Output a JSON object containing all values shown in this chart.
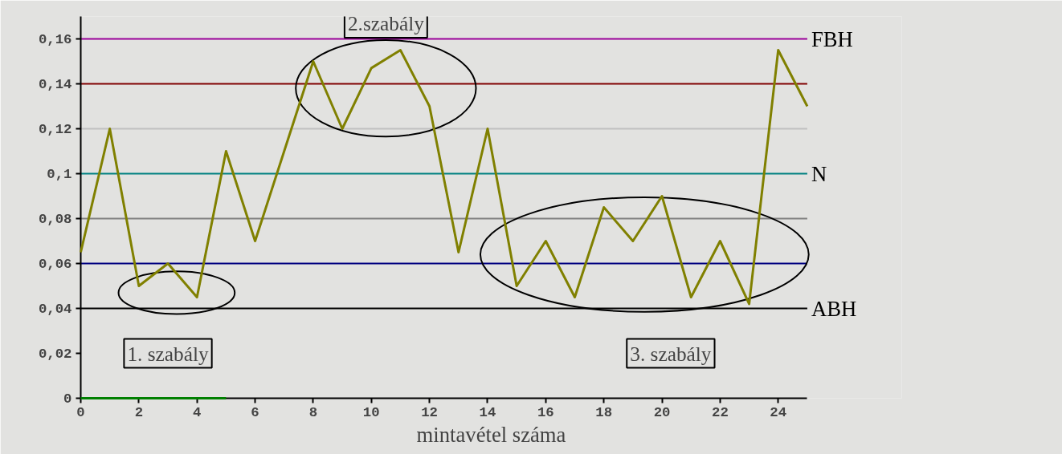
{
  "chart_data": {
    "type": "line",
    "xlabel": "mintavétel száma",
    "x": [
      0,
      1,
      2,
      3,
      4,
      5,
      6,
      7,
      8,
      9,
      10,
      11,
      12,
      13,
      14,
      15,
      16,
      17,
      18,
      19,
      20,
      21,
      22,
      23,
      24,
      25
    ],
    "series": [
      {
        "color": "#808000",
        "values": [
          0.065,
          0.12,
          0.05,
          0.06,
          0.045,
          0.11,
          0.07,
          0.11,
          0.15,
          0.12,
          0.147,
          0.155,
          0.13,
          0.065,
          0.12,
          0.05,
          0.07,
          0.045,
          0.085,
          0.07,
          0.09,
          0.045,
          0.07,
          0.042,
          0.155,
          0.13
        ]
      },
      {
        "color": "#008000",
        "x": [
          0,
          5
        ],
        "values": [
          0,
          0
        ]
      }
    ],
    "xlim": [
      0,
      25
    ],
    "ylim": [
      0,
      0.17
    ],
    "xticks": [
      0,
      2,
      4,
      6,
      8,
      10,
      12,
      14,
      16,
      18,
      20,
      22,
      24
    ],
    "yticks": [
      {
        "value": 0,
        "label": "0"
      },
      {
        "value": 0.02,
        "label": "0,02"
      },
      {
        "value": 0.04,
        "label": "0,04"
      },
      {
        "value": 0.06,
        "label": "0,06"
      },
      {
        "value": 0.08,
        "label": "0,08"
      },
      {
        "value": 0.1,
        "label": "0,1"
      },
      {
        "value": 0.12,
        "label": "0,12"
      },
      {
        "value": 0.14,
        "label": "0,14"
      },
      {
        "value": 0.16,
        "label": "0,16"
      }
    ],
    "ref_lines": [
      {
        "axis": "y",
        "value": 0.16,
        "label": "FBH",
        "color": "#990099"
      },
      {
        "axis": "y",
        "value": 0.14,
        "color": "#800000"
      },
      {
        "axis": "y",
        "value": 0.12,
        "color": "#c0c0c0"
      },
      {
        "axis": "y",
        "value": 0.1,
        "label": "N",
        "color": "#008080"
      },
      {
        "axis": "y",
        "value": 0.08,
        "color": "#808080"
      },
      {
        "axis": "y",
        "value": 0.06,
        "color": "#000080"
      },
      {
        "axis": "y",
        "value": 0.04,
        "label": "ABH",
        "color": "#000000"
      }
    ],
    "annotations": [
      "1. szabály",
      "2.szabály",
      "3. szabály"
    ],
    "marker": "none",
    "line_style": "solid"
  }
}
